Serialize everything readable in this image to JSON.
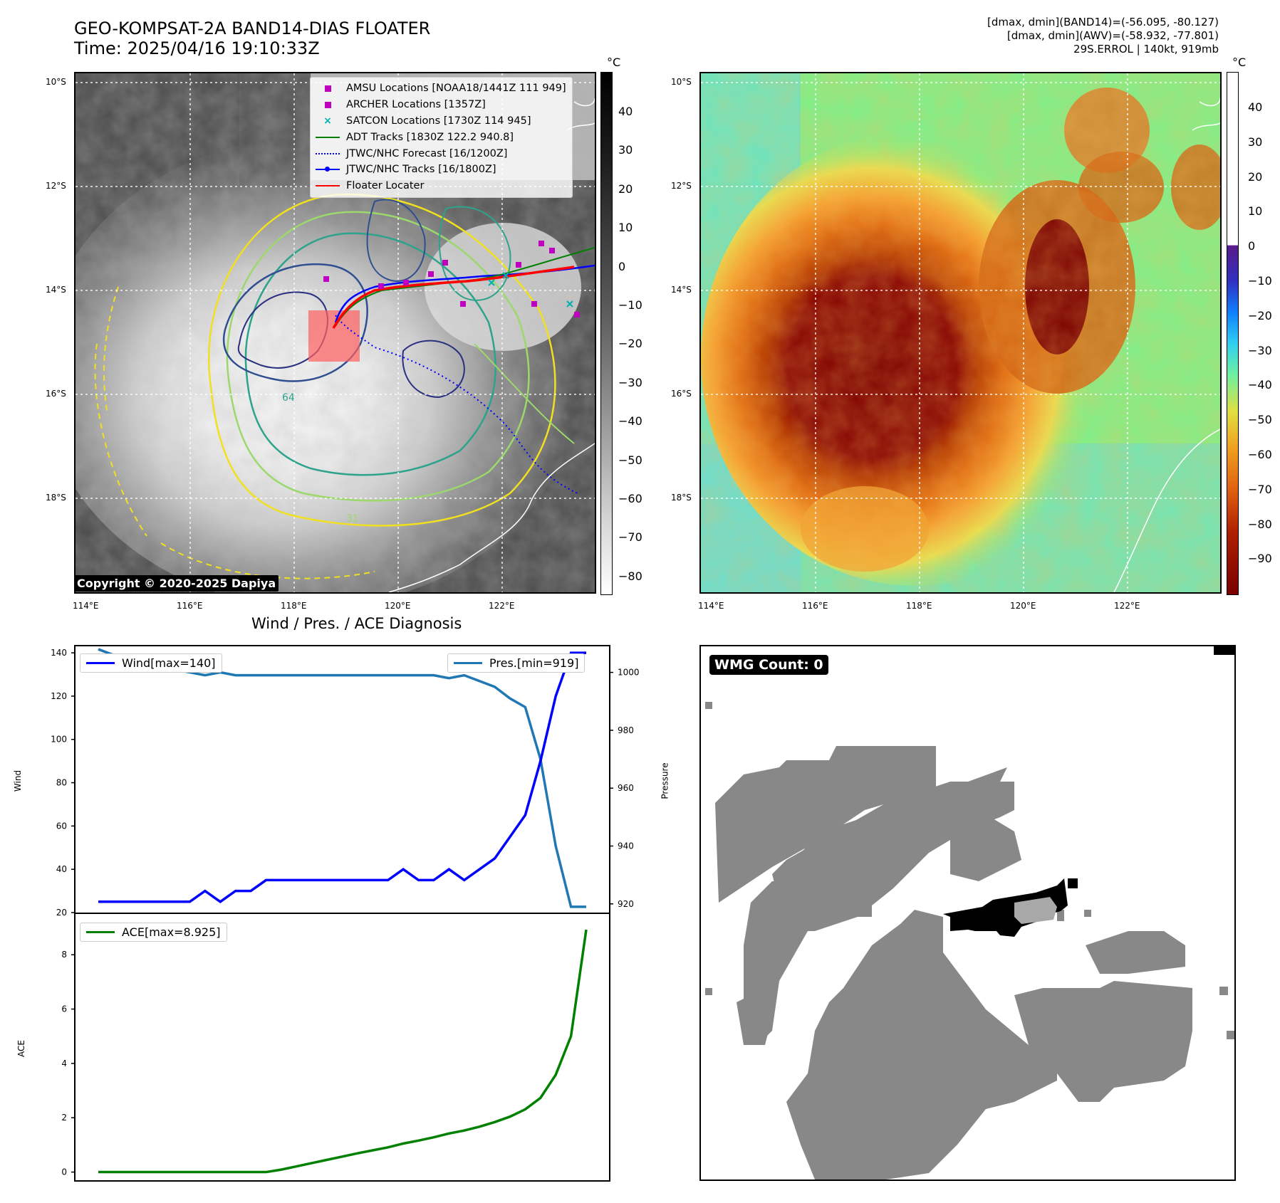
{
  "header": {
    "title_line1": "GEO-KOMPSAT-2A BAND14-DIAS FLOATER",
    "title_line2": "Time: 2025/04/16 19:10:33Z",
    "right_line1": "[dmax, dmin](BAND14)=(-56.095, -80.127)",
    "right_line2": "[dmax, dmin](AWV)=(-58.932, -77.801)",
    "right_line3": "29S.ERROL | 140kt, 919mb"
  },
  "map": {
    "lat_ticks": [
      "10°S",
      "12°S",
      "14°S",
      "16°S",
      "18°S"
    ],
    "lon_ticks": [
      "114°E",
      "116°E",
      "118°E",
      "120°E",
      "122°E"
    ],
    "contour_labels": [
      "64",
      "31"
    ],
    "copyright": "Copyright © 2020-2025 Dapiya",
    "legend": [
      {
        "label": "AMSU Locations [NOAA18/1441Z 111 949]",
        "color": "#c000c0",
        "kind": "square"
      },
      {
        "label": "ARCHER Locations [1357Z]",
        "color": "#c000c0",
        "kind": "square"
      },
      {
        "label": "SATCON Locations [1730Z 114 945]",
        "color": "#00b0b0",
        "kind": "x"
      },
      {
        "label": "ADT Tracks [1830Z 122.2 940.8]",
        "color": "#008000",
        "kind": "line"
      },
      {
        "label": "JTWC/NHC Forecast [16/1200Z]",
        "color": "#0000ff",
        "kind": "dotted"
      },
      {
        "label": "JTWC/NHC Tracks [16/1800Z]",
        "color": "#0000ff",
        "kind": "linedot"
      },
      {
        "label": "Floater Locater",
        "color": "#ff0000",
        "kind": "line"
      }
    ]
  },
  "colorbars": {
    "unit": "°C",
    "left_ticks": [
      "40",
      "30",
      "20",
      "10",
      "0",
      "−10",
      "−20",
      "−30",
      "−40",
      "−50",
      "−60",
      "−70",
      "−80"
    ],
    "right_ticks": [
      "40",
      "30",
      "20",
      "10",
      "0",
      "−10",
      "−20",
      "−30",
      "−40",
      "−50",
      "−60",
      "−70",
      "−80",
      "−90"
    ]
  },
  "diagnosis": {
    "subtitle": "Wind / Pres. / ACE Diagnosis",
    "wmg_count": "WMG Count: 0"
  },
  "colors": {
    "wind": "#0000ff",
    "pressure": "#1f77b4",
    "ace": "#008000",
    "wmg_gray": "#888888"
  },
  "chart_data": [
    {
      "type": "line",
      "title": "",
      "xlabel": "",
      "ylabel": "Wind",
      "ylabel_right": "Pressure",
      "ylim": [
        20,
        143
      ],
      "ylim_right": [
        917,
        1009
      ],
      "yticks": [
        20,
        40,
        60,
        80,
        100,
        120,
        140
      ],
      "yticks_right": [
        920,
        940,
        960,
        980,
        1000
      ],
      "x": [
        0,
        1,
        2,
        3,
        4,
        5,
        6,
        7,
        8,
        9,
        10,
        11,
        12,
        13,
        14,
        15,
        16,
        17,
        18,
        19,
        20,
        21,
        22,
        23,
        24,
        25,
        26,
        27,
        28,
        29,
        30,
        31,
        32
      ],
      "series": [
        {
          "name": "Wind[max=140]",
          "axis": "left",
          "values": [
            25,
            25,
            25,
            25,
            25,
            25,
            25,
            30,
            25,
            30,
            30,
            35,
            35,
            35,
            35,
            35,
            35,
            35,
            35,
            35,
            40,
            35,
            35,
            40,
            35,
            40,
            45,
            55,
            65,
            90,
            120,
            140,
            140
          ]
        },
        {
          "name": "Pres.[min=919]",
          "axis": "right",
          "values": [
            1008,
            1006,
            1006,
            1005,
            1004,
            1001,
            1000,
            999,
            1000,
            999,
            999,
            999,
            999,
            999,
            999,
            999,
            999,
            999,
            999,
            999,
            999,
            999,
            999,
            998,
            999,
            997,
            995,
            991,
            988,
            970,
            940,
            919,
            919
          ]
        }
      ]
    },
    {
      "type": "line",
      "title": "",
      "xlabel": "",
      "ylabel": "ACE",
      "ylim": [
        -0.3,
        9.5
      ],
      "yticks": [
        0,
        2,
        4,
        6,
        8
      ],
      "x": [
        0,
        1,
        2,
        3,
        4,
        5,
        6,
        7,
        8,
        9,
        10,
        11,
        12,
        13,
        14,
        15,
        16,
        17,
        18,
        19,
        20,
        21,
        22,
        23,
        24,
        25,
        26,
        27,
        28,
        29,
        30,
        31,
        32
      ],
      "series": [
        {
          "name": "ACE[max=8.925]",
          "values": [
            0,
            0,
            0,
            0,
            0,
            0,
            0,
            0,
            0,
            0,
            0,
            0,
            0.09,
            0.21,
            0.33,
            0.45,
            0.57,
            0.69,
            0.8,
            0.91,
            1.05,
            1.16,
            1.28,
            1.42,
            1.53,
            1.67,
            1.84,
            2.04,
            2.31,
            2.73,
            3.58,
            5.0,
            8.925
          ]
        }
      ]
    }
  ]
}
